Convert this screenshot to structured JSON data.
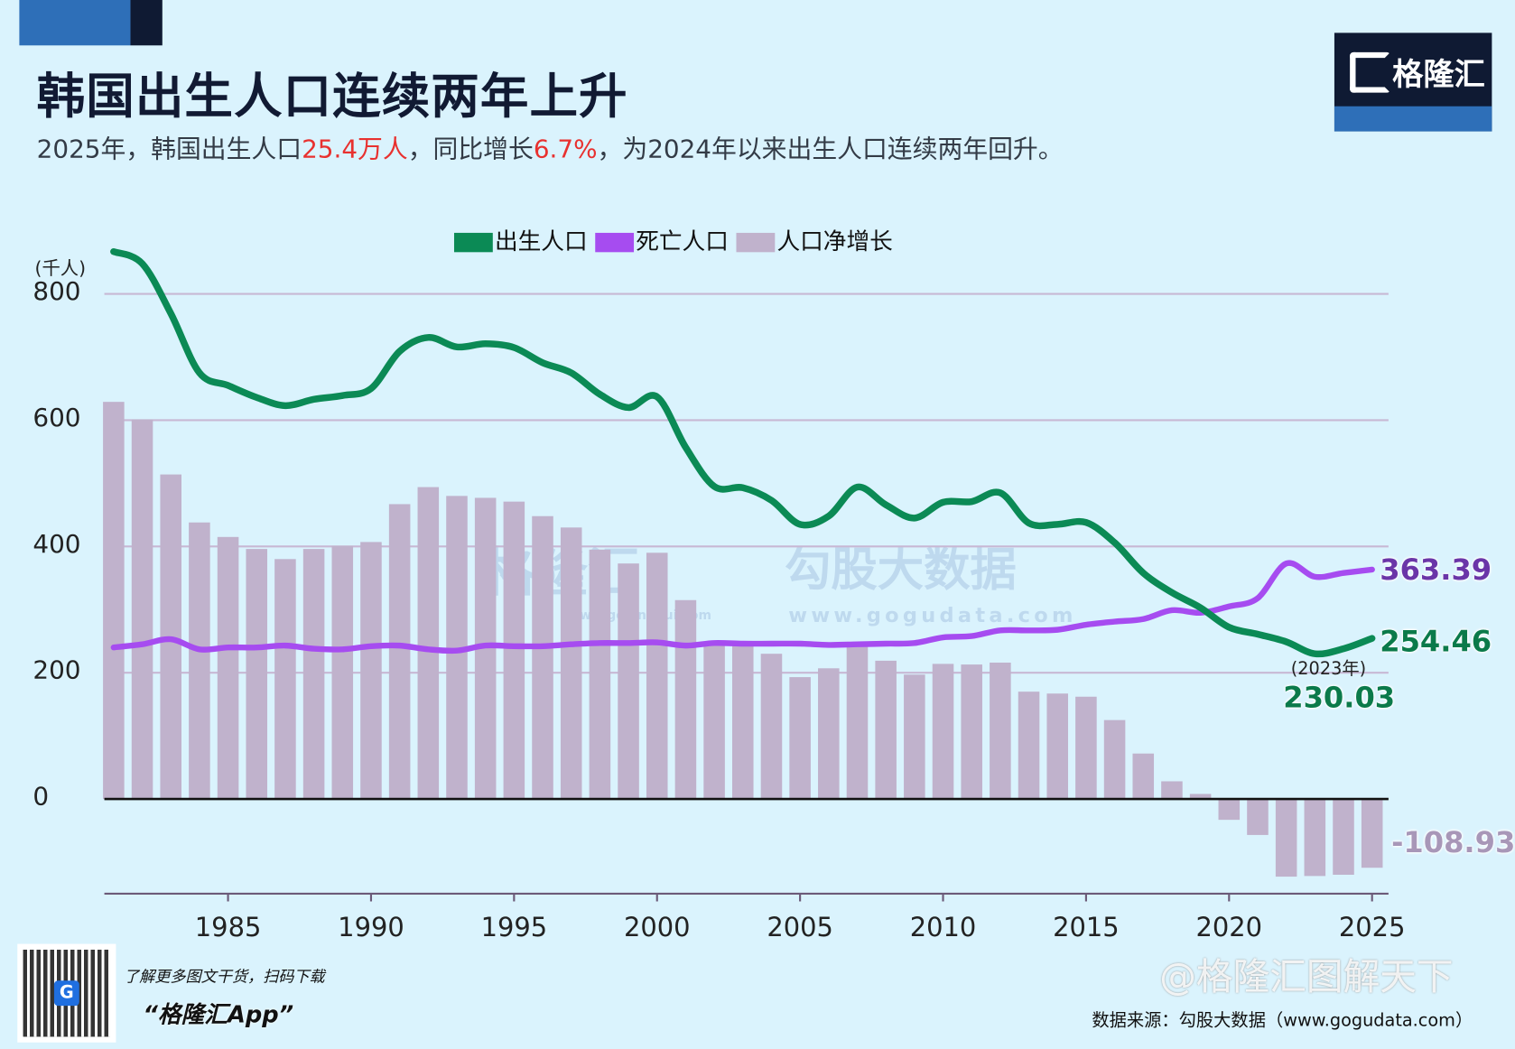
{
  "header": {
    "title": "韩国出生人口连续两年上升",
    "subtitle_parts": [
      "2025年，韩国出生人口",
      "25.4万人",
      "，同比增长",
      "6.7%",
      "，为2024年以来出生人口连续两年回升。"
    ],
    "logo_text": "格隆汇"
  },
  "colors": {
    "births": "#0b8a55",
    "deaths": "#a64cf0",
    "net": "#c0b2cc",
    "highlight": "#e8312f",
    "background": "#daf3fd"
  },
  "watermarks": {
    "brand": "格隆汇",
    "brand_url": "www.gelonghui.com",
    "data": "勾股大数据",
    "data_url": "www.gogudata.com",
    "weibo": "@格隆汇图解天下"
  },
  "footer": {
    "qr_caption": "了解更多图文干货，扫码下载",
    "app_name": "“格隆汇App”",
    "source": "数据来源：勾股大数据（www.gogudata.com）"
  },
  "chart_data": {
    "type": "bar+line",
    "unit_label": "(千人)",
    "legend": [
      "出生人口",
      "死亡人口",
      "人口净增长"
    ],
    "legend_placement": "top-center",
    "ylim": [
      -150,
      870
    ],
    "yticks": [
      0,
      200,
      400,
      600,
      800
    ],
    "xticks": [
      1985,
      1990,
      1995,
      2000,
      2005,
      2010,
      2015,
      2020,
      2025
    ],
    "grid": true,
    "x": [
      1981,
      1982,
      1983,
      1984,
      1985,
      1986,
      1987,
      1988,
      1989,
      1990,
      1991,
      1992,
      1993,
      1994,
      1995,
      1996,
      1997,
      1998,
      1999,
      2000,
      2001,
      2002,
      2003,
      2004,
      2005,
      2006,
      2007,
      2008,
      2009,
      2010,
      2011,
      2012,
      2013,
      2014,
      2015,
      2016,
      2017,
      2018,
      2019,
      2020,
      2021,
      2022,
      2023,
      2024,
      2025
    ],
    "series": [
      {
        "name": "出生人口",
        "type": "line",
        "values": [
          867,
          848,
          769,
          675,
          655,
          636,
          623,
          633,
          639,
          650,
          709,
          731,
          716,
          721,
          715,
          691,
          675,
          641,
          620,
          637,
          557,
          495,
          493,
          473,
          435,
          448,
          494,
          466,
          445,
          470,
          471,
          485,
          437,
          435,
          438,
          406,
          358,
          327,
          303,
          272,
          261,
          249,
          230.03,
          238,
          254.46
        ]
      },
      {
        "name": "死亡人口",
        "type": "line",
        "values": [
          240,
          245,
          253,
          237,
          240,
          240,
          243,
          238,
          237,
          242,
          243,
          237,
          235,
          243,
          242,
          242,
          245,
          247,
          247,
          248,
          243,
          247,
          246,
          246,
          246,
          244,
          245,
          246,
          247,
          256,
          258,
          267,
          267,
          268,
          276,
          281,
          285,
          299,
          295,
          305,
          318,
          373,
          352,
          358,
          363.39
        ]
      },
      {
        "name": "人口净增长",
        "type": "bar",
        "values": [
          629,
          601,
          514,
          438,
          415,
          396,
          380,
          396,
          401,
          407,
          467,
          494,
          480,
          477,
          471,
          448,
          430,
          395,
          373,
          390,
          315,
          248,
          247,
          230,
          193,
          207,
          249,
          219,
          197,
          214,
          213,
          216,
          170,
          167,
          162,
          125,
          72,
          28,
          8,
          -33,
          -57,
          -123,
          -122,
          -120,
          -108.93
        ]
      }
    ],
    "annotations": {
      "deaths_last": "363.39",
      "births_last": "254.46",
      "births_min_year": "(2023年)",
      "births_min": "230.03",
      "net_last": "-108.93"
    }
  }
}
